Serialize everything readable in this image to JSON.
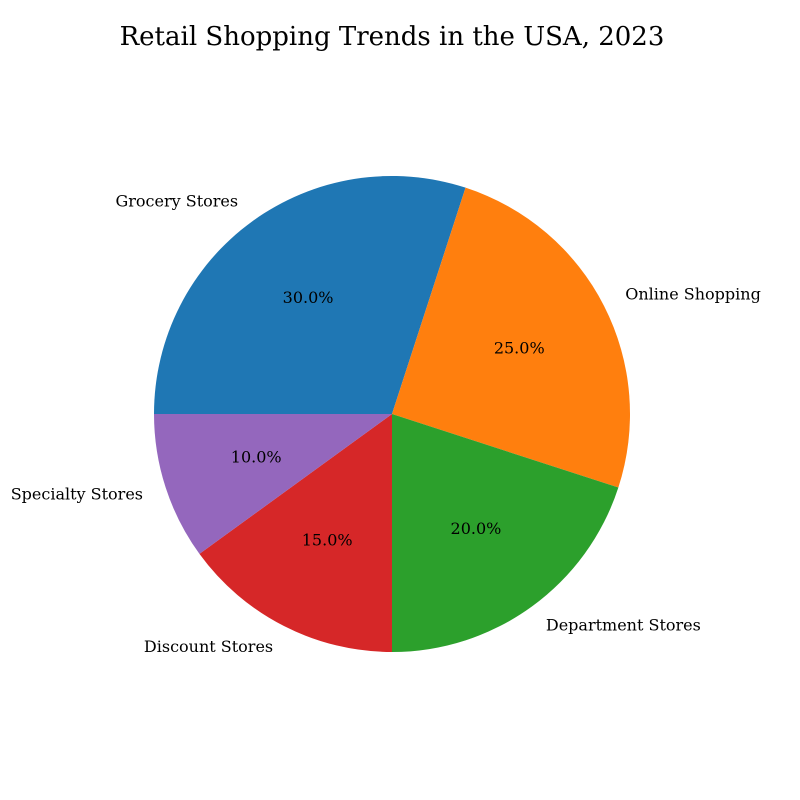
{
  "chart_data": {
    "type": "pie",
    "title": "Retail Shopping Trends in the USA, 2023",
    "slices": [
      {
        "label": "Grocery Stores",
        "value": 30.0,
        "pct_label": "30.0%",
        "color": "#1f77b4"
      },
      {
        "label": "Online Shopping",
        "value": 25.0,
        "pct_label": "25.0%",
        "color": "#ff7f0e"
      },
      {
        "label": "Department Stores",
        "value": 20.0,
        "pct_label": "20.0%",
        "color": "#2ca02c"
      },
      {
        "label": "Discount Stores",
        "value": 15.0,
        "pct_label": "15.0%",
        "color": "#d62728"
      },
      {
        "label": "Specialty Stores",
        "value": 10.0,
        "pct_label": "10.0%",
        "color": "#9467bd"
      }
    ]
  }
}
